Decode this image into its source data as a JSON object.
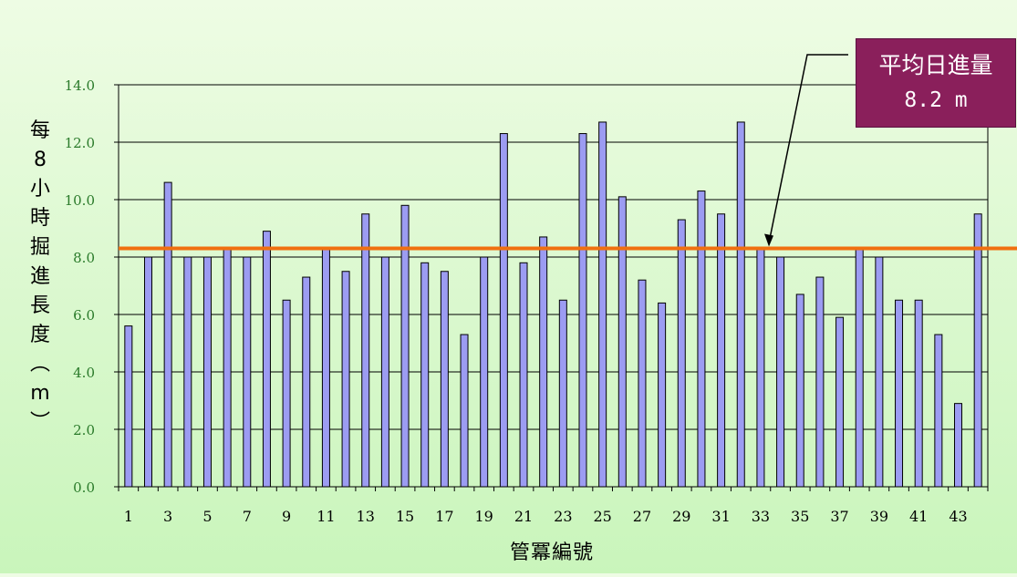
{
  "chart_data": {
    "type": "bar",
    "ylabel": "每8小時掘進長度(m)",
    "ylabel_chars": [
      "每",
      "8",
      "小",
      "時",
      "掘",
      "進",
      "長",
      "度",
      "︵",
      "m",
      "︶"
    ],
    "xlabel": "管冪編號",
    "ylim": [
      0,
      14
    ],
    "yticks": [
      "0.0",
      "2.0",
      "4.0",
      "6.0",
      "8.0",
      "10.0",
      "12.0",
      "14.0"
    ],
    "grid": true,
    "categories": [
      "1",
      "2",
      "3",
      "4",
      "5",
      "6",
      "7",
      "8",
      "9",
      "10",
      "11",
      "12",
      "13",
      "14",
      "15",
      "16",
      "17",
      "18",
      "19",
      "20",
      "21",
      "22",
      "23",
      "24",
      "25",
      "26",
      "27",
      "28",
      "29",
      "30",
      "31",
      "32",
      "33",
      "34",
      "35",
      "36",
      "37",
      "38",
      "39",
      "40",
      "41",
      "42",
      "43",
      "44"
    ],
    "xtick_labels": [
      "1",
      "3",
      "5",
      "7",
      "9",
      "11",
      "13",
      "15",
      "17",
      "19",
      "21",
      "23",
      "25",
      "27",
      "29",
      "31",
      "33",
      "35",
      "37",
      "39",
      "41",
      "43"
    ],
    "values": [
      5.6,
      8.0,
      10.6,
      8.0,
      8.0,
      8.3,
      8.0,
      8.9,
      6.5,
      7.3,
      8.3,
      7.5,
      9.5,
      8.0,
      9.8,
      7.8,
      7.5,
      5.3,
      8.0,
      12.3,
      7.8,
      8.7,
      6.5,
      12.3,
      12.7,
      10.1,
      7.2,
      6.4,
      9.3,
      10.3,
      9.5,
      12.7,
      8.3,
      8.0,
      6.7,
      7.3,
      5.9,
      8.3,
      8.0,
      6.5,
      6.5,
      5.3,
      2.9,
      9.5
    ],
    "average": 8.3,
    "average_label_title": "平均日進量",
    "average_label_value": "8.2 m",
    "colors": {
      "bar_fill": "#9c9cf2",
      "bar_stroke": "#000000",
      "average_line": "#f07010",
      "tick_label": "#2a7a2a",
      "annotation_box": "#8a1f5b"
    }
  }
}
